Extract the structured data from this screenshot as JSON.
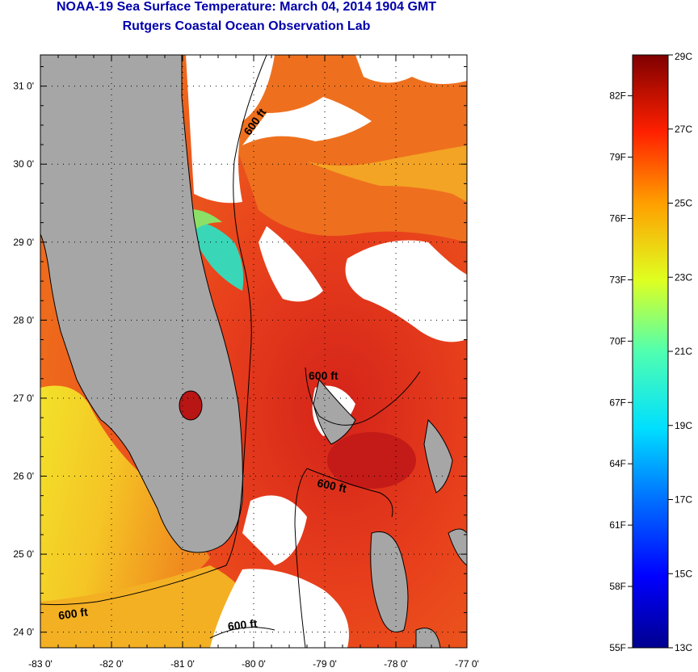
{
  "title": "NOAA-19 Sea Surface Temperature:  March 04, 2014 1904 GMT",
  "subtitle": "Rutgers Coastal Ocean Observation Lab",
  "map": {
    "lat_ticks": [
      "31 0'",
      "30 0'",
      "29 0'",
      "28 0'",
      "27 0'",
      "26 0'",
      "25 0'",
      "24 0'"
    ],
    "lon_ticks": [
      "-83 0'",
      "-82 0'",
      "-81 0'",
      "-80 0'",
      "-79 0'",
      "-78 0'",
      "-77 0'"
    ],
    "contour_labels": [
      "600 ft",
      "600 ft",
      "600 ft",
      "600 ft",
      "600 ft"
    ],
    "colors": {
      "land": "#a6a6a6",
      "cloud": "#ffffff",
      "warm_water": "#e8381a",
      "mid_water": "#f08a1e",
      "cool_water": "#f5c825"
    }
  },
  "colorbar": {
    "celsius_labels": [
      "29C",
      "27C",
      "25C",
      "23C",
      "21C",
      "19C",
      "17C",
      "15C",
      "13C"
    ],
    "fahrenheit_labels": [
      "82F",
      "79F",
      "76F",
      "73F",
      "70F",
      "67F",
      "64F",
      "61F",
      "58F",
      "55F"
    ],
    "range_c": [
      13,
      29
    ],
    "range_f": [
      55,
      84
    ]
  }
}
